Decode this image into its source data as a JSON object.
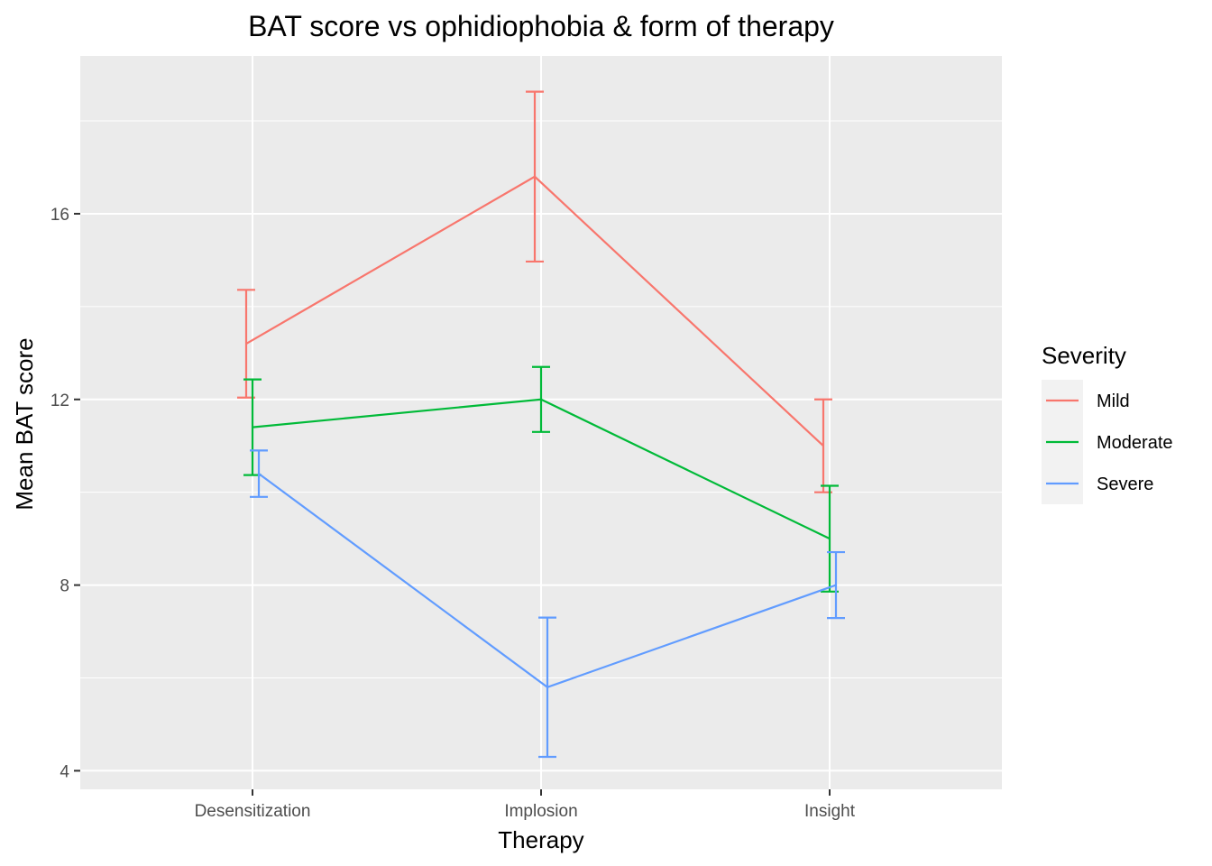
{
  "chart_data": {
    "type": "line",
    "title": "BAT score vs ophidiophobia & form of therapy",
    "xlabel": "Therapy",
    "ylabel": "Mean BAT score",
    "categories": [
      "Desensitization",
      "Implosion",
      "Insight"
    ],
    "y_ticks": [
      4,
      8,
      12,
      16
    ],
    "ylim": [
      3.6,
      19.4
    ],
    "grid": true,
    "legend": {
      "title": "Severity",
      "position": "right"
    },
    "series": [
      {
        "name": "Mild",
        "color": "#F8766D",
        "values": [
          13.2,
          16.8,
          11.0
        ],
        "lower": [
          12.04,
          14.97,
          10.0
        ],
        "upper": [
          14.36,
          18.63,
          12.0
        ]
      },
      {
        "name": "Moderate",
        "color": "#00BA38",
        "values": [
          11.4,
          12.0,
          9.0
        ],
        "lower": [
          10.37,
          11.3,
          7.86
        ],
        "upper": [
          12.43,
          12.7,
          10.14
        ]
      },
      {
        "name": "Severe",
        "color": "#619CFF",
        "values": [
          10.4,
          5.8,
          8.0
        ],
        "lower": [
          9.9,
          4.3,
          7.29
        ],
        "upper": [
          10.9,
          7.3,
          8.71
        ]
      }
    ]
  }
}
